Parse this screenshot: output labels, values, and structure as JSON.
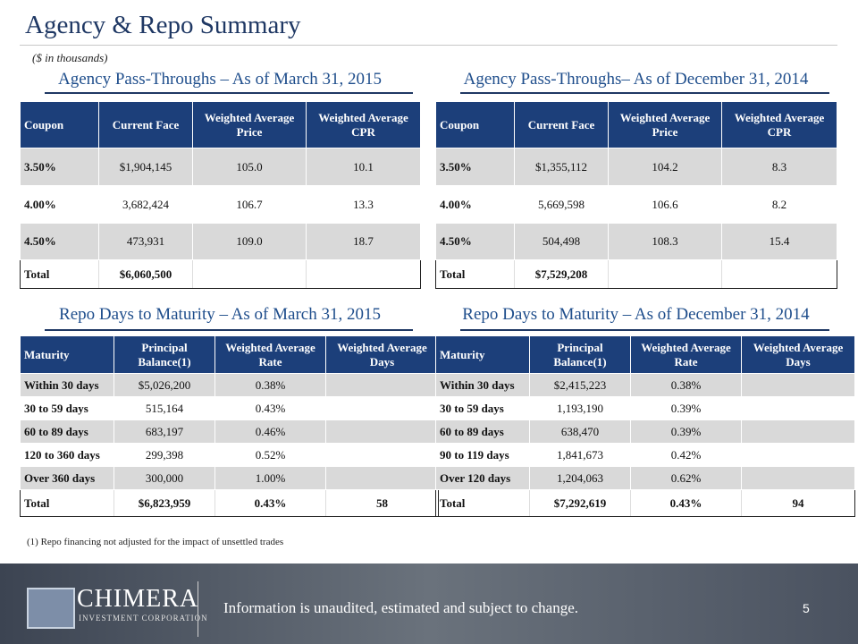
{
  "header": {
    "title": "Agency & Repo Summary",
    "subtitle": "($ in thousands)"
  },
  "tables": [
    {
      "heading": "Agency Pass-Throughs – As of March 31, 2015",
      "columns": [
        "Coupon",
        "Current Face",
        "Weighted Average Price",
        "Weighted Average CPR"
      ],
      "rows": [
        [
          "3.50%",
          "$1,904,145",
          "105.0",
          "10.1"
        ],
        [
          "4.00%",
          "3,682,424",
          "106.7",
          "13.3"
        ],
        [
          "4.50%",
          "473,931",
          "109.0",
          "18.7"
        ],
        [
          "Total",
          "$6,060,500"
        ]
      ]
    },
    {
      "heading": "Agency Pass-Throughs– As of December 31, 2014",
      "columns": [
        "Coupon",
        "Current Face",
        "Weighted Average Price",
        "Weighted Average CPR"
      ],
      "rows": [
        [
          "3.50%",
          "$1,355,112",
          "104.2",
          "8.3"
        ],
        [
          "4.00%",
          "5,669,598",
          "106.6",
          "8.2"
        ],
        [
          "4.50%",
          "504,498",
          "108.3",
          "15.4"
        ],
        [
          "Total",
          "$7,529,208"
        ]
      ]
    },
    {
      "heading": "Repo Days to Maturity – As of March 31, 2015",
      "columns": [
        "Maturity",
        "Principal Balance(1)",
        "Weighted Average Rate",
        "Weighted Average Days"
      ],
      "rows": [
        [
          "Within 30 days",
          "$5,026,200",
          "0.38%"
        ],
        [
          "30 to 59 days",
          "515,164",
          "0.43%"
        ],
        [
          "60 to 89 days",
          "683,197",
          "0.46%"
        ],
        [
          "120 to 360 days",
          "299,398",
          "0.52%"
        ],
        [
          "Over 360 days",
          "300,000",
          "1.00%"
        ],
        [
          "Total",
          "$6,823,959",
          "0.43%",
          "58"
        ]
      ]
    },
    {
      "heading": "Repo Days to Maturity – As of December 31, 2014",
      "columns": [
        "Maturity",
        "Principal Balance(1)",
        "Weighted Average Rate",
        "Weighted Average Days"
      ],
      "rows": [
        [
          "Within 30 days",
          "$2,415,223",
          "0.38%"
        ],
        [
          "30 to 59 days",
          "1,193,190",
          "0.39%"
        ],
        [
          "60 to 89 days",
          "638,470",
          "0.39%"
        ],
        [
          "90 to 119 days",
          "1,841,673",
          "0.42%"
        ],
        [
          "Over 120 days",
          "1,204,063",
          "0.62%"
        ],
        [
          "Total",
          "$7,292,619",
          "0.43%",
          "94"
        ]
      ]
    }
  ],
  "footnote": "(1)  Repo financing not adjusted for the impact of unsettled trades",
  "footer": {
    "logo_name": "CHIMERA",
    "logo_sub": "INVESTMENT CORPORATION",
    "disclaimer": "Information is unaudited, estimated and subject to change.",
    "page": "5"
  }
}
